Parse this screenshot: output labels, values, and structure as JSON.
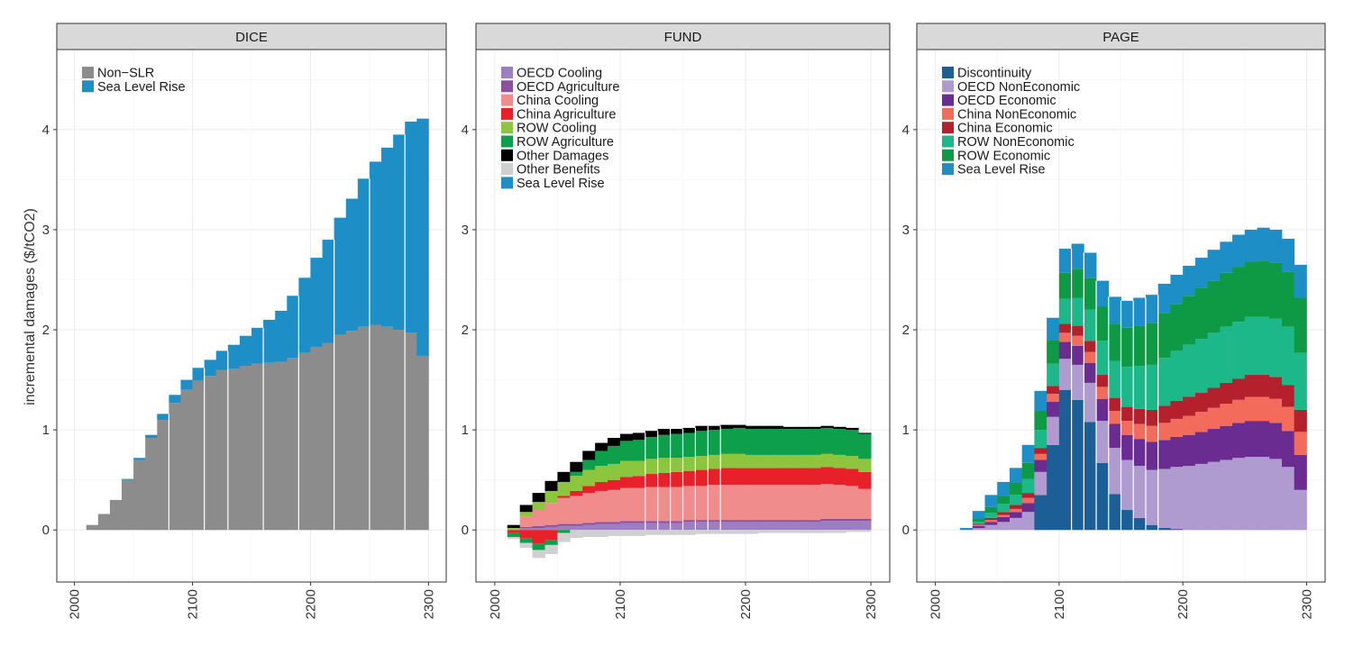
{
  "chart_data": {
    "type": "bar",
    "stacked": true,
    "ylabel": "incremental damages ($/tCO2)",
    "x_ticks": [
      2000,
      2100,
      2200,
      2300
    ],
    "y_ticks": [
      0,
      1,
      2,
      3,
      4
    ],
    "xlim": [
      1985,
      2315
    ],
    "ylim": [
      -0.52,
      4.8
    ],
    "grid": true,
    "legend_position": "top-left",
    "panels": [
      {
        "title": "DICE",
        "years": [
          2005,
          2015,
          2025,
          2035,
          2045,
          2055,
          2065,
          2075,
          2085,
          2095,
          2105,
          2115,
          2125,
          2135,
          2145,
          2155,
          2165,
          2175,
          2185,
          2195,
          2205,
          2215,
          2225,
          2235,
          2245,
          2255,
          2265,
          2275,
          2285,
          2295
        ],
        "divider_years": [
          2080,
          2110,
          2130,
          2160,
          2190,
          2220,
          2250,
          2280
        ],
        "series": [
          {
            "name": "Non−SLR",
            "color": "#8c8c8c",
            "values": [
              0,
              0.05,
              0.16,
              0.3,
              0.5,
              0.7,
              0.92,
              1.1,
              1.27,
              1.4,
              1.49,
              1.54,
              1.6,
              1.61,
              1.64,
              1.66,
              1.67,
              1.68,
              1.72,
              1.77,
              1.83,
              1.87,
              1.95,
              1.99,
              2.03,
              2.05,
              2.03,
              2.0,
              1.97,
              1.74
            ]
          },
          {
            "name": "Sea Level Rise",
            "color": "#1e8fc6",
            "values": [
              0,
              0,
              0,
              0,
              0.01,
              0.02,
              0.03,
              0.06,
              0.08,
              0.1,
              0.13,
              0.16,
              0.19,
              0.24,
              0.3,
              0.36,
              0.43,
              0.51,
              0.62,
              0.75,
              0.89,
              1.03,
              1.17,
              1.32,
              1.48,
              1.63,
              1.79,
              1.95,
              2.11,
              2.37
            ]
          }
        ]
      },
      {
        "title": "FUND",
        "years": [
          2005,
          2015,
          2025,
          2035,
          2045,
          2055,
          2065,
          2075,
          2085,
          2095,
          2105,
          2115,
          2125,
          2135,
          2145,
          2155,
          2165,
          2175,
          2185,
          2195,
          2205,
          2215,
          2225,
          2235,
          2245,
          2255,
          2265,
          2275,
          2285,
          2295
        ],
        "divider_years": [
          2120,
          2130,
          2140,
          2150,
          2160,
          2170,
          2180
        ],
        "series": [
          {
            "name": "OECD Cooling",
            "color": "#9b7fc2",
            "values": [
              0,
              0,
              0.02,
              0.02,
              0.03,
              0.04,
              0.04,
              0.05,
              0.06,
              0.06,
              0.07,
              0.07,
              0.07,
              0.07,
              0.07,
              0.08,
              0.08,
              0.08,
              0.08,
              0.08,
              0.08,
              0.08,
              0.08,
              0.08,
              0.08,
              0.08,
              0.09,
              0.09,
              0.09,
              0.09
            ]
          },
          {
            "name": "OECD Agriculture",
            "color": "#8e4f9e",
            "values": [
              0,
              0,
              0.01,
              0.02,
              0.02,
              0.02,
              0.02,
              0.02,
              0.02,
              0.02,
              0.02,
              0.02,
              0.02,
              0.02,
              0.02,
              0.02,
              0.02,
              0.02,
              0.02,
              0.02,
              0.02,
              0.02,
              0.02,
              0.02,
              0.02,
              0.02,
              0.02,
              0.02,
              0.02,
              0.02
            ]
          },
          {
            "name": "China Cooling",
            "color": "#f08c8c",
            "values": [
              0,
              0,
              0.1,
              0.16,
              0.22,
              0.26,
              0.28,
              0.3,
              0.31,
              0.32,
              0.33,
              0.33,
              0.34,
              0.34,
              0.34,
              0.34,
              0.34,
              0.35,
              0.35,
              0.35,
              0.35,
              0.35,
              0.35,
              0.35,
              0.35,
              0.35,
              0.35,
              0.34,
              0.33,
              0.3
            ]
          },
          {
            "name": "China Agriculture",
            "color": "#e8202a",
            "values": [
              0,
              -0.03,
              -0.08,
              -0.14,
              -0.1,
              0.02,
              0.05,
              0.07,
              0.09,
              0.1,
              0.11,
              0.12,
              0.13,
              0.14,
              0.15,
              0.15,
              0.16,
              0.16,
              0.17,
              0.17,
              0.17,
              0.17,
              0.17,
              0.17,
              0.17,
              0.17,
              0.17,
              0.17,
              0.17,
              0.17
            ]
          },
          {
            "name": "ROW Cooling",
            "color": "#8cc63f",
            "values": [
              0,
              0.02,
              0.05,
              0.08,
              0.12,
              0.14,
              0.15,
              0.16,
              0.16,
              0.16,
              0.16,
              0.15,
              0.15,
              0.15,
              0.14,
              0.14,
              0.14,
              0.14,
              0.14,
              0.14,
              0.13,
              0.13,
              0.13,
              0.13,
              0.13,
              0.13,
              0.13,
              0.13,
              0.13,
              0.13
            ]
          },
          {
            "name": "ROW Agriculture",
            "color": "#0e9f4a",
            "values": [
              0,
              -0.04,
              -0.05,
              -0.06,
              -0.05,
              -0.03,
              0.04,
              0.1,
              0.15,
              0.18,
              0.2,
              0.21,
              0.22,
              0.23,
              0.24,
              0.24,
              0.25,
              0.25,
              0.25,
              0.26,
              0.26,
              0.26,
              0.26,
              0.26,
              0.26,
              0.26,
              0.26,
              0.26,
              0.26,
              0.25
            ]
          },
          {
            "name": "Other Damages",
            "color": "#000000",
            "values": [
              0,
              0.03,
              0.07,
              0.09,
              0.1,
              0.1,
              0.1,
              0.09,
              0.08,
              0.08,
              0.07,
              0.07,
              0.06,
              0.06,
              0.05,
              0.05,
              0.05,
              0.04,
              0.04,
              0.03,
              0.03,
              0.03,
              0.03,
              0.02,
              0.02,
              0.02,
              0.02,
              0.02,
              0.02,
              0.01
            ]
          },
          {
            "name": "Other Benefits",
            "color": "#d0d0d0",
            "values": [
              0,
              -0.02,
              -0.05,
              -0.08,
              -0.09,
              -0.09,
              -0.08,
              -0.07,
              -0.07,
              -0.06,
              -0.06,
              -0.06,
              -0.05,
              -0.05,
              -0.05,
              -0.05,
              -0.04,
              -0.04,
              -0.04,
              -0.04,
              -0.04,
              -0.03,
              -0.03,
              -0.03,
              -0.03,
              -0.03,
              -0.03,
              -0.03,
              -0.02,
              -0.02
            ]
          },
          {
            "name": "Sea Level Rise",
            "color": "#1e8fc6",
            "values": [
              0,
              0,
              0,
              0,
              0,
              0,
              0,
              0,
              0,
              0,
              0,
              0,
              0,
              0,
              0,
              0,
              0,
              0,
              0,
              0,
              0,
              0,
              0,
              0,
              0,
              0,
              0,
              0,
              0,
              0
            ]
          }
        ]
      },
      {
        "title": "PAGE",
        "years": [
          2005,
          2015,
          2025,
          2035,
          2045,
          2055,
          2065,
          2075,
          2085,
          2095,
          2105,
          2115,
          2125,
          2135,
          2145,
          2155,
          2165,
          2175,
          2185,
          2195,
          2205,
          2215,
          2225,
          2235,
          2245,
          2255,
          2265,
          2275,
          2285,
          2295
        ],
        "divider_years": [
          2110,
          2120,
          2130,
          2140,
          2150,
          2160,
          2170,
          2180
        ],
        "series": [
          {
            "name": "Discontinuity",
            "color": "#1c5f97",
            "values": [
              0,
              0,
              0,
              0,
              0,
              0,
              0,
              0,
              0.35,
              0.85,
              1.4,
              1.3,
              1.08,
              0.67,
              0.36,
              0.2,
              0.12,
              0.05,
              0.02,
              0.01,
              0,
              0,
              0,
              0,
              0,
              0,
              0,
              0,
              0,
              0
            ]
          },
          {
            "name": "OECD NonEconomic",
            "color": "#b09bd0",
            "values": [
              0,
              0,
              0,
              0.02,
              0.05,
              0.08,
              0.12,
              0.18,
              0.23,
              0.28,
              0.31,
              0.35,
              0.39,
              0.42,
              0.46,
              0.5,
              0.52,
              0.55,
              0.59,
              0.62,
              0.64,
              0.66,
              0.68,
              0.7,
              0.72,
              0.73,
              0.73,
              0.71,
              0.63,
              0.4
            ]
          },
          {
            "name": "OECD Economic",
            "color": "#6a2c91",
            "values": [
              0,
              0,
              0,
              0.02,
              0.03,
              0.05,
              0.06,
              0.09,
              0.12,
              0.15,
              0.17,
              0.19,
              0.2,
              0.22,
              0.24,
              0.25,
              0.27,
              0.28,
              0.29,
              0.3,
              0.31,
              0.32,
              0.33,
              0.34,
              0.35,
              0.36,
              0.36,
              0.36,
              0.36,
              0.35
            ]
          },
          {
            "name": "China NonEconomic",
            "color": "#f26b5b",
            "values": [
              0,
              0,
              0,
              0.01,
              0.02,
              0.02,
              0.03,
              0.05,
              0.06,
              0.08,
              0.09,
              0.1,
              0.11,
              0.12,
              0.13,
              0.14,
              0.15,
              0.16,
              0.17,
              0.18,
              0.19,
              0.2,
              0.21,
              0.22,
              0.23,
              0.24,
              0.24,
              0.24,
              0.24,
              0.23
            ]
          },
          {
            "name": "China Economic",
            "color": "#b5202d",
            "values": [
              0,
              0,
              0,
              0.01,
              0.02,
              0.03,
              0.04,
              0.05,
              0.06,
              0.08,
              0.09,
              0.1,
              0.11,
              0.12,
              0.13,
              0.14,
              0.15,
              0.16,
              0.17,
              0.18,
              0.19,
              0.19,
              0.2,
              0.21,
              0.21,
              0.22,
              0.22,
              0.22,
              0.22,
              0.22
            ]
          },
          {
            "name": "ROW NonEconomic",
            "color": "#1db889",
            "values": [
              0,
              0,
              0,
              0.02,
              0.05,
              0.08,
              0.1,
              0.14,
              0.18,
              0.22,
              0.25,
              0.28,
              0.31,
              0.34,
              0.37,
              0.4,
              0.43,
              0.45,
              0.48,
              0.5,
              0.52,
              0.54,
              0.55,
              0.56,
              0.57,
              0.58,
              0.58,
              0.58,
              0.58,
              0.57
            ]
          },
          {
            "name": "ROW Economic",
            "color": "#0e9a44",
            "values": [
              0,
              0,
              0,
              0.03,
              0.06,
              0.08,
              0.12,
              0.16,
              0.19,
              0.24,
              0.26,
              0.29,
              0.32,
              0.34,
              0.37,
              0.39,
              0.4,
              0.42,
              0.45,
              0.47,
              0.49,
              0.51,
              0.52,
              0.54,
              0.55,
              0.55,
              0.56,
              0.56,
              0.55,
              0.55
            ]
          },
          {
            "name": "Sea Level Rise",
            "color": "#1e8fc6",
            "values": [
              0,
              0,
              0.02,
              0.08,
              0.12,
              0.14,
              0.15,
              0.18,
              0.2,
              0.22,
              0.24,
              0.25,
              0.25,
              0.26,
              0.27,
              0.27,
              0.28,
              0.28,
              0.29,
              0.29,
              0.3,
              0.3,
              0.31,
              0.31,
              0.32,
              0.32,
              0.33,
              0.33,
              0.33,
              0.33
            ]
          }
        ]
      }
    ]
  }
}
